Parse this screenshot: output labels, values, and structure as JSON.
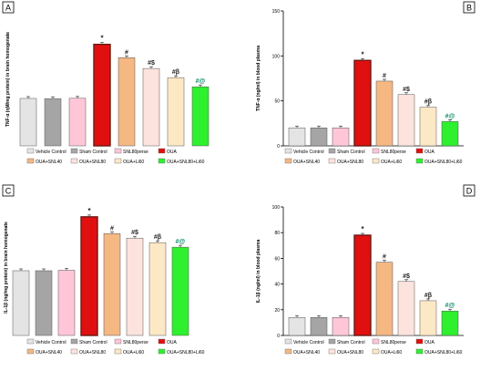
{
  "chart_data": [
    {
      "panel_label": "A",
      "type": "bar",
      "ylabel": "TNF-α (ɳM/mg protein) in brain homogenate",
      "ylim": [
        0,
        80
      ],
      "yticks": [],
      "categories": [
        "Vehicle Control",
        "Sham Control",
        "SNL80perse",
        "OUA",
        "OUA+SNL40",
        "OUA+SNL80",
        "OUA+Li60",
        "OUA+SNL80+Li60"
      ],
      "values": [
        28.5,
        28.4,
        28.6,
        61,
        53,
        46.5,
        41,
        35.5
      ],
      "annotations": [
        "",
        "",
        "",
        "*",
        "#",
        "#$",
        "#β",
        "#@"
      ],
      "legend": [
        "Vehicle Control",
        "Sham Control",
        "SNL80perse",
        "OUA",
        "OUA+SNL40",
        "OUA+SNL80",
        "OUA+Li60",
        "OUA+SNL80+Li60"
      ]
    },
    {
      "panel_label": "B",
      "type": "bar",
      "ylabel": "TNF-α (ng/ml) in blood plasma",
      "ylim": [
        0,
        150
      ],
      "yticks": [
        0,
        50,
        100,
        150
      ],
      "categories": [
        "Vehicle Control",
        "Sham Control",
        "SNL80perse",
        "OUA",
        "OUA+SNL40",
        "OUA+SNL80",
        "OUA+Li60",
        "OUA+SNL80+Li60"
      ],
      "values": [
        20,
        20,
        20,
        95,
        72,
        57,
        43,
        27
      ],
      "annotations": [
        "",
        "",
        "",
        "*",
        "#",
        "#$",
        "#β",
        "#@"
      ],
      "legend": [
        "Vehicle Control",
        "Sham Control",
        "SNL80perse",
        "OUA",
        "OUA+SNL40",
        "OUA+SNL80",
        "OUA+Li60",
        "OUA+SNL80+Li60"
      ]
    },
    {
      "panel_label": "C",
      "type": "bar",
      "ylabel": "IL-1β (ng/mg protein) in brain homogenate",
      "ylim": [
        0,
        30
      ],
      "yticks": [],
      "categories": [
        "Vehicle Control",
        "Sham Control",
        "SNL80perse",
        "OUA",
        "OUA+SNL40",
        "OUA+SNL80",
        "OUA+Li60",
        "OUA+SNL80+Li60"
      ],
      "values": [
        14.3,
        14.3,
        14.4,
        26.2,
        22.5,
        21.5,
        20.5,
        19.5
      ],
      "annotations": [
        "",
        "",
        "",
        "*",
        "#",
        "#$",
        "#β",
        "#@"
      ],
      "legend": [
        "Vehicle Control",
        "Sham Control",
        "SNL80perse",
        "OUA",
        "OUA+SNL40",
        "OUA+SNL80",
        "OUA+Li60",
        "OUA+SNL80+Li60"
      ]
    },
    {
      "panel_label": "D",
      "type": "bar",
      "ylabel": "IL-1β (ng/ml) in blood plasma",
      "ylim": [
        0,
        100
      ],
      "yticks": [
        0,
        20,
        40,
        60,
        80,
        100
      ],
      "categories": [
        "Vehicle Control",
        "Sham Control",
        "SNL80perse",
        "OUA",
        "OUA+SNL40",
        "OUA+SNL80",
        "OUA+Li60",
        "OUA+SNL80+Li60"
      ],
      "values": [
        14,
        14,
        14,
        78,
        57,
        42,
        27,
        19
      ],
      "annotations": [
        "",
        "",
        "",
        "*",
        "#",
        "#$",
        "#β",
        "#@"
      ],
      "legend": [
        "Vehicle Control",
        "Sham Control",
        "SNL80perse",
        "OUA",
        "OUA+SNL40",
        "OUA+SNL80",
        "OUA+Li60",
        "OUA+SNL80+Li60"
      ]
    }
  ],
  "colors": [
    "#e4e4e4",
    "#a5a5a5",
    "#ffc6d8",
    "#e01010",
    "#f5b883",
    "#fde3dd",
    "#fde8c5",
    "#2ef02e"
  ],
  "ouaBorder": "#6b1a14",
  "annotationColors": {
    "default": "#222222",
    "last": "#0e8f6a"
  }
}
